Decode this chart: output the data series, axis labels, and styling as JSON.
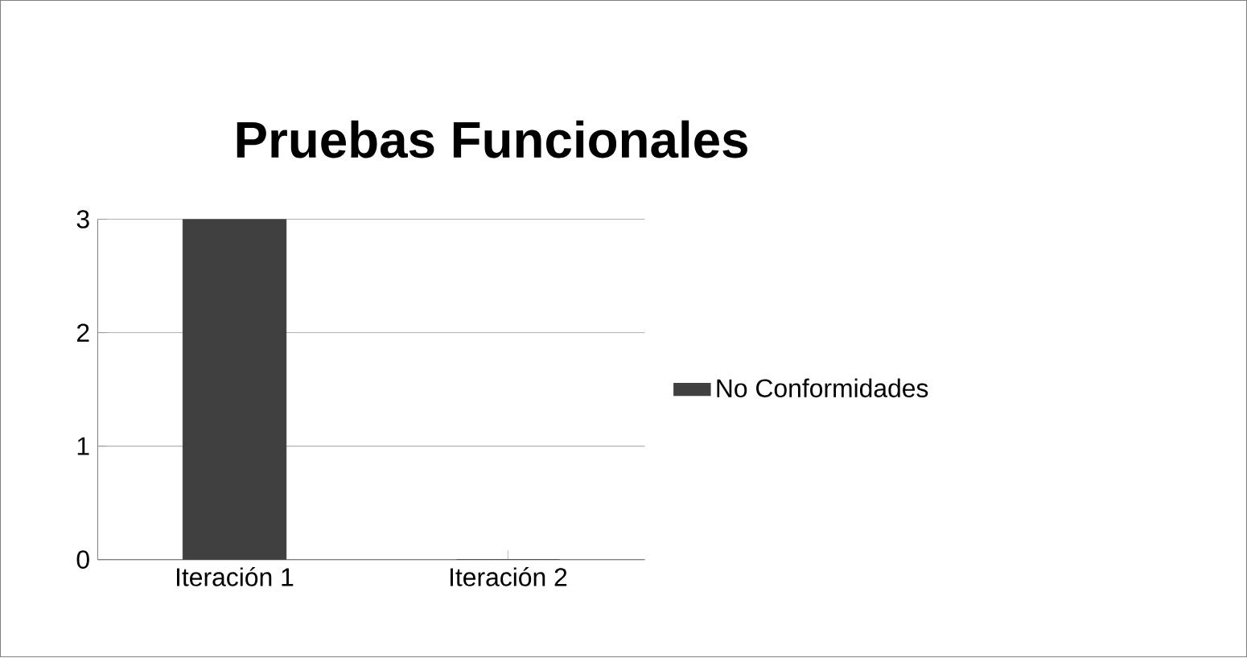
{
  "chart_data": {
    "type": "bar",
    "title": "Pruebas Funcionales",
    "categories": [
      "Iteración 1",
      "Iteración 2"
    ],
    "series": [
      {
        "name": "No Conformidades",
        "color": "#404040",
        "values": [
          3,
          0
        ]
      }
    ],
    "ylim": [
      0,
      3
    ],
    "yticks": [
      0,
      1,
      2,
      3
    ],
    "grid": "y",
    "legend": "right"
  }
}
